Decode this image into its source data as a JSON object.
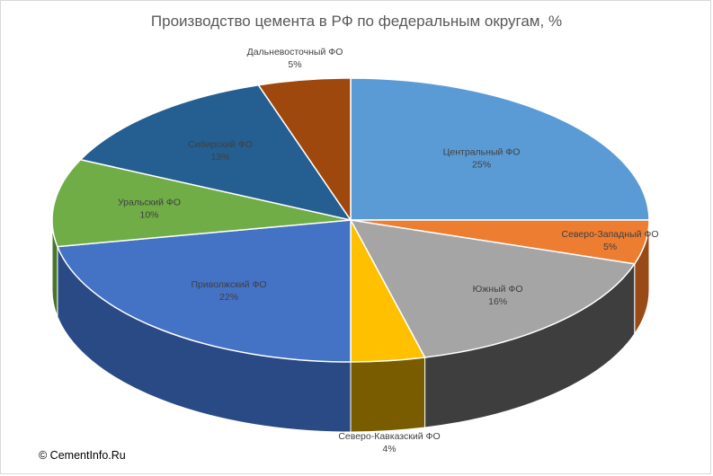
{
  "chart_data": {
    "type": "pie",
    "title": "Производство цемента в РФ по федеральным округам, %",
    "slices": [
      {
        "label": "Центральный ФО",
        "value": 25,
        "value_text": "25%",
        "color": "#5b9bd5",
        "side": "#3f76a8"
      },
      {
        "label": "Северо-Западный ФО",
        "value": 5,
        "value_text": "5%",
        "color": "#ed7d31",
        "side": "#9a4a17"
      },
      {
        "label": "Южный ФО",
        "value": 16,
        "value_text": "16%",
        "color": "#a5a5a5",
        "side": "#3e3e3e"
      },
      {
        "label": "Северо-Кавказский ФО",
        "value": 4,
        "value_text": "4%",
        "color": "#ffc000",
        "side": "#7a5c00"
      },
      {
        "label": "Приволжский ФО",
        "value": 22,
        "value_text": "22%",
        "color": "#4472c4",
        "side": "#2a4a85"
      },
      {
        "label": "Уральский ФО",
        "value": 10,
        "value_text": "10%",
        "color": "#70ad47",
        "side": "#47752b"
      },
      {
        "label": "Сибирский ФО",
        "value": 13,
        "value_text": "13%",
        "color": "#255e91",
        "side": "#173e63"
      },
      {
        "label": "Дальневосточный ФО",
        "value": 5,
        "value_text": "5%",
        "color": "#9e480e",
        "side": "#6b2f08"
      }
    ],
    "style": "3d-pie"
  },
  "footer": {
    "copyright": "© CementInfo.Ru"
  }
}
